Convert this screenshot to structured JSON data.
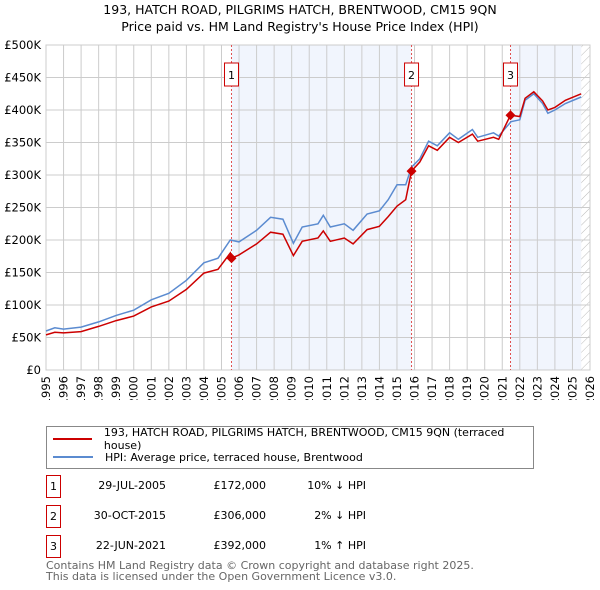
{
  "chart_data": {
    "type": "line",
    "title": "193, HATCH ROAD, PILGRIMS HATCH, BRENTWOOD, CM15 9QN",
    "subtitle": "Price paid vs. HM Land Registry's House Price Index (HPI)",
    "xlim": [
      1995,
      2026
    ],
    "ylim": [
      0,
      500000
    ],
    "y_ticks": [
      {
        "v": 0,
        "label": "£0"
      },
      {
        "v": 50000,
        "label": "£50K"
      },
      {
        "v": 100000,
        "label": "£100K"
      },
      {
        "v": 150000,
        "label": "£150K"
      },
      {
        "v": 200000,
        "label": "£200K"
      },
      {
        "v": 250000,
        "label": "£250K"
      },
      {
        "v": 300000,
        "label": "£300K"
      },
      {
        "v": 350000,
        "label": "£350K"
      },
      {
        "v": 400000,
        "label": "£400K"
      },
      {
        "v": 450000,
        "label": "£450K"
      },
      {
        "v": 500000,
        "label": "£500K"
      }
    ],
    "x_ticks": [
      "1995",
      "1996",
      "1997",
      "1998",
      "1999",
      "2000",
      "2001",
      "2002",
      "2003",
      "2004",
      "2005",
      "2006",
      "2007",
      "2008",
      "2009",
      "2010",
      "2011",
      "2012",
      "2013",
      "2014",
      "2015",
      "2016",
      "2017",
      "2018",
      "2019",
      "2020",
      "2021",
      "2022",
      "2023",
      "2024",
      "2025",
      "2026"
    ],
    "grid": true,
    "series": [
      {
        "name": "193, HATCH ROAD, PILGRIMS HATCH, BRENTWOOD, CM15 9QN (terraced house)",
        "color": "#cc0000",
        "x": [
          1995,
          1995.5,
          1996,
          1997,
          1998,
          1999,
          2000,
          2001,
          2002,
          2003,
          2004,
          2004.8,
          2005.5,
          2005.57,
          2006,
          2007,
          2007.8,
          2008.5,
          2009.1,
          2009.6,
          2010.5,
          2010.8,
          2011.2,
          2012,
          2012.5,
          2013.3,
          2014,
          2014.5,
          2015,
          2015.5,
          2015.83,
          2016.3,
          2016.8,
          2017.3,
          2018,
          2018.5,
          2019.3,
          2019.6,
          2020.5,
          2020.8,
          2021.47,
          2022,
          2022.3,
          2022.8,
          2023.3,
          2023.6,
          2024,
          2024.6,
          2025.5
        ],
        "y": [
          54,
          58,
          57,
          59,
          67,
          76,
          83,
          97,
          106,
          124,
          149,
          155,
          180,
          172,
          177,
          194,
          212,
          209,
          176,
          198,
          203,
          214,
          198,
          203,
          194,
          216,
          221,
          236,
          252,
          262,
          306,
          320,
          345,
          338,
          358,
          350,
          363,
          352,
          358,
          355,
          392,
          390,
          418,
          428,
          414,
          400,
          404,
          415,
          425
        ]
      },
      {
        "name": "HPI: Average price, terraced house, Brentwood",
        "color": "#5b8bd0",
        "x": [
          1995,
          1995.5,
          1996,
          1997,
          1998,
          1999,
          2000,
          2001,
          2002,
          2003,
          2004,
          2004.8,
          2005.5,
          2006,
          2007,
          2007.8,
          2008.5,
          2009.1,
          2009.6,
          2010.5,
          2010.8,
          2011.2,
          2012,
          2012.5,
          2013.3,
          2014,
          2014.5,
          2015,
          2015.5,
          2015.83,
          2016.3,
          2016.8,
          2017.3,
          2018,
          2018.5,
          2019.3,
          2019.6,
          2020.5,
          2020.8,
          2021.5,
          2022,
          2022.3,
          2022.8,
          2023.3,
          2023.6,
          2024,
          2024.6,
          2025.5
        ],
        "y": [
          60,
          65,
          63,
          66,
          74,
          84,
          92,
          108,
          118,
          138,
          165,
          172,
          200,
          197,
          215,
          235,
          232,
          195,
          220,
          225,
          238,
          220,
          225,
          215,
          240,
          245,
          262,
          285,
          285,
          312,
          325,
          352,
          345,
          365,
          355,
          370,
          358,
          365,
          360,
          382,
          385,
          415,
          425,
          410,
          395,
          400,
          410,
          420
        ]
      }
    ],
    "y_units": "thousands GBP",
    "sales": [
      {
        "n": "1",
        "x": 2005.57,
        "y": 172
      },
      {
        "n": "2",
        "x": 2015.83,
        "y": 306
      },
      {
        "n": "3",
        "x": 2021.47,
        "y": 392
      }
    ],
    "shaded_ranges": [
      [
        2005.57,
        2015.83
      ],
      [
        2021.47,
        2025.5
      ]
    ],
    "hatched_after": 2025.5,
    "legend_position": "below"
  },
  "legend": [
    "193, HATCH ROAD, PILGRIMS HATCH, BRENTWOOD, CM15 9QN (terraced house)",
    "HPI: Average price, terraced house, Brentwood"
  ],
  "transactions": [
    {
      "n": "1",
      "date": "29-JUL-2005",
      "price": "£172,000",
      "hpi": "10% ↓ HPI"
    },
    {
      "n": "2",
      "date": "30-OCT-2015",
      "price": "£306,000",
      "hpi": "2% ↓ HPI"
    },
    {
      "n": "3",
      "date": "22-JUN-2021",
      "price": "£392,000",
      "hpi": "1% ↑ HPI"
    }
  ],
  "footer": [
    "Contains HM Land Registry data © Crown copyright and database right 2025.",
    "This data is licensed under the Open Government Licence v3.0."
  ]
}
